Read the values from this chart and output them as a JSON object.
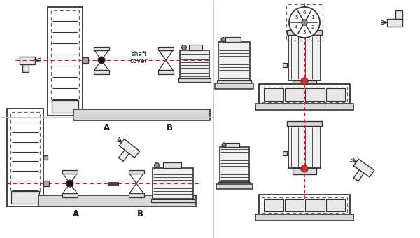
{
  "bg_color": "#ffffff",
  "line_color": "#333333",
  "red_dashed_color": "#cc2222",
  "text_color": "#111111",
  "shaft_cover_line1": "shaft",
  "shaft_cover_line2": "cover",
  "label_A": "A",
  "label_B": "B",
  "figsize": [
    6.0,
    3.4
  ],
  "dpi": 100,
  "imp_labels": [
    "6",
    "1",
    "2",
    "3",
    "4",
    "5"
  ]
}
